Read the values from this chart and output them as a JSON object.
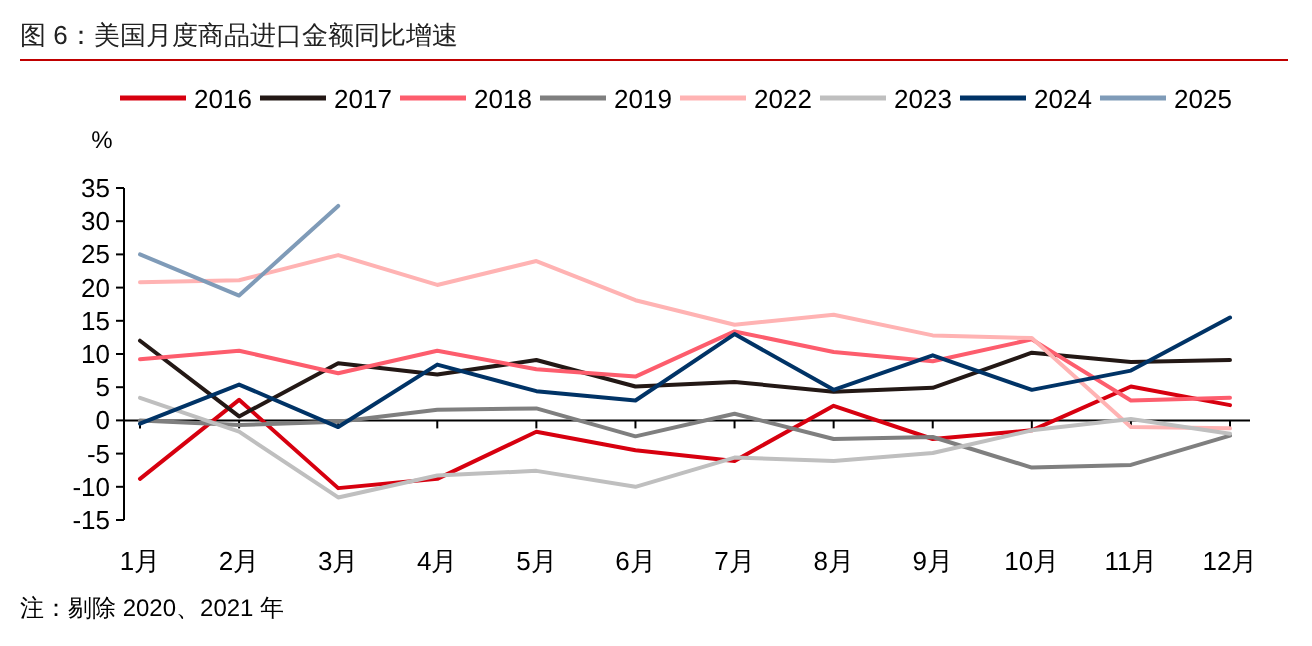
{
  "chart_data": {
    "type": "line",
    "title": "图 6：美国月度商品进口金额同比增速",
    "ylabel": "%",
    "annotations": [
      "注：剔除 2020、2021 年"
    ],
    "categories": [
      "1月",
      "2月",
      "3月",
      "4月",
      "5月",
      "6月",
      "7月",
      "8月",
      "9月",
      "10月",
      "11月",
      "12月"
    ],
    "ylim": [
      -15,
      35
    ],
    "yticks": [
      -15,
      -10,
      -5,
      0,
      5,
      10,
      15,
      20,
      25,
      30,
      35
    ],
    "legend": "top",
    "marker": "none",
    "line_style": "solid",
    "series": [
      {
        "name": "2016",
        "color": "#d7000f",
        "values": [
          -8.8,
          3.1,
          -10.2,
          -8.8,
          -1.7,
          -4.5,
          -6.1,
          2.2,
          -2.8,
          -1.5,
          5.1,
          2.3
        ]
      },
      {
        "name": "2017",
        "color": "#231815",
        "values": [
          12,
          0.6,
          8.6,
          6.9,
          9.1,
          5.1,
          5.8,
          4.3,
          4.9,
          10.2,
          8.8,
          9.1
        ]
      },
      {
        "name": "2018",
        "color": "#fd5d6d",
        "values": [
          9.2,
          10.5,
          7.1,
          10.5,
          7.7,
          6.6,
          13.4,
          10.3,
          8.9,
          12.2,
          3.0,
          3.4
        ]
      },
      {
        "name": "2019",
        "color": "#7f7f7f",
        "values": [
          0,
          -0.7,
          -0.2,
          1.6,
          1.8,
          -2.4,
          1.0,
          -2.8,
          -2.5,
          -7.1,
          -6.7,
          -2.3
        ]
      },
      {
        "name": "2022",
        "color": "#ffb3b3",
        "values": [
          20.8,
          21.1,
          24.9,
          20.4,
          24,
          18.1,
          14.4,
          15.9,
          12.8,
          12.4,
          -1,
          -1.2
        ]
      },
      {
        "name": "2023",
        "color": "#bfbfbf",
        "values": [
          3.4,
          -1.7,
          -11.6,
          -8.3,
          -7.6,
          -10,
          -5.6,
          -6.1,
          -4.9,
          -1.5,
          0.2,
          -2.0
        ]
      },
      {
        "name": "2024",
        "color": "#003366",
        "values": [
          -0.5,
          5.4,
          -1.0,
          8.4,
          4.4,
          3.0,
          13,
          4.6,
          9.8,
          4.6,
          7.5,
          15.5
        ]
      },
      {
        "name": "2025",
        "color": "#7f9bb8",
        "values": [
          25,
          18.8,
          32.3,
          null,
          null,
          null,
          null,
          null,
          null,
          null,
          null,
          null
        ]
      }
    ]
  }
}
